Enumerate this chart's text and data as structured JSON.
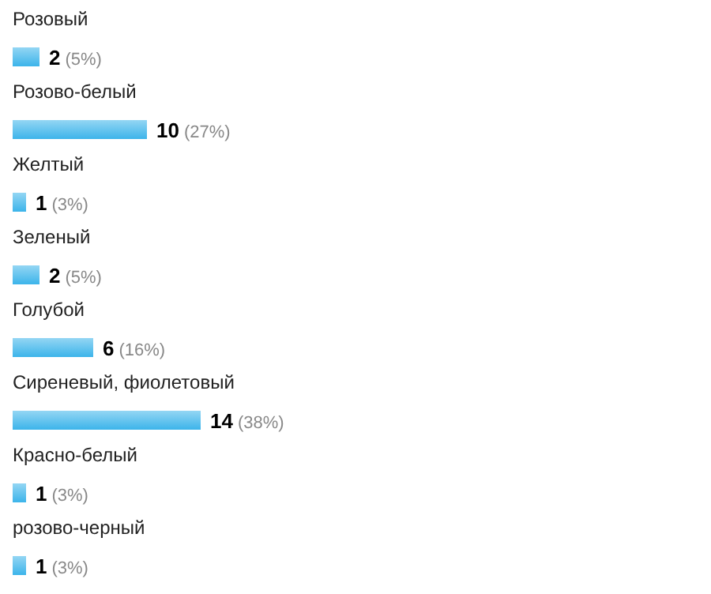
{
  "chart_data": {
    "type": "bar",
    "orientation": "horizontal",
    "categories": [
      "Розовый",
      "Розово-белый",
      "Желтый",
      "Зеленый",
      "Голубой",
      "Сиреневый, фиолетовый",
      "Красно-белый",
      "розово-черный"
    ],
    "values": [
      2,
      10,
      1,
      2,
      6,
      14,
      1,
      1
    ],
    "value_labels": [
      "2 (5%)",
      "10 (27%)",
      "1 (3%)",
      "2 (5%)",
      "6 (16%)",
      "14 (38%)",
      "1 (3%)",
      "1 (3%)"
    ],
    "color": "#3cb4ea"
  }
}
